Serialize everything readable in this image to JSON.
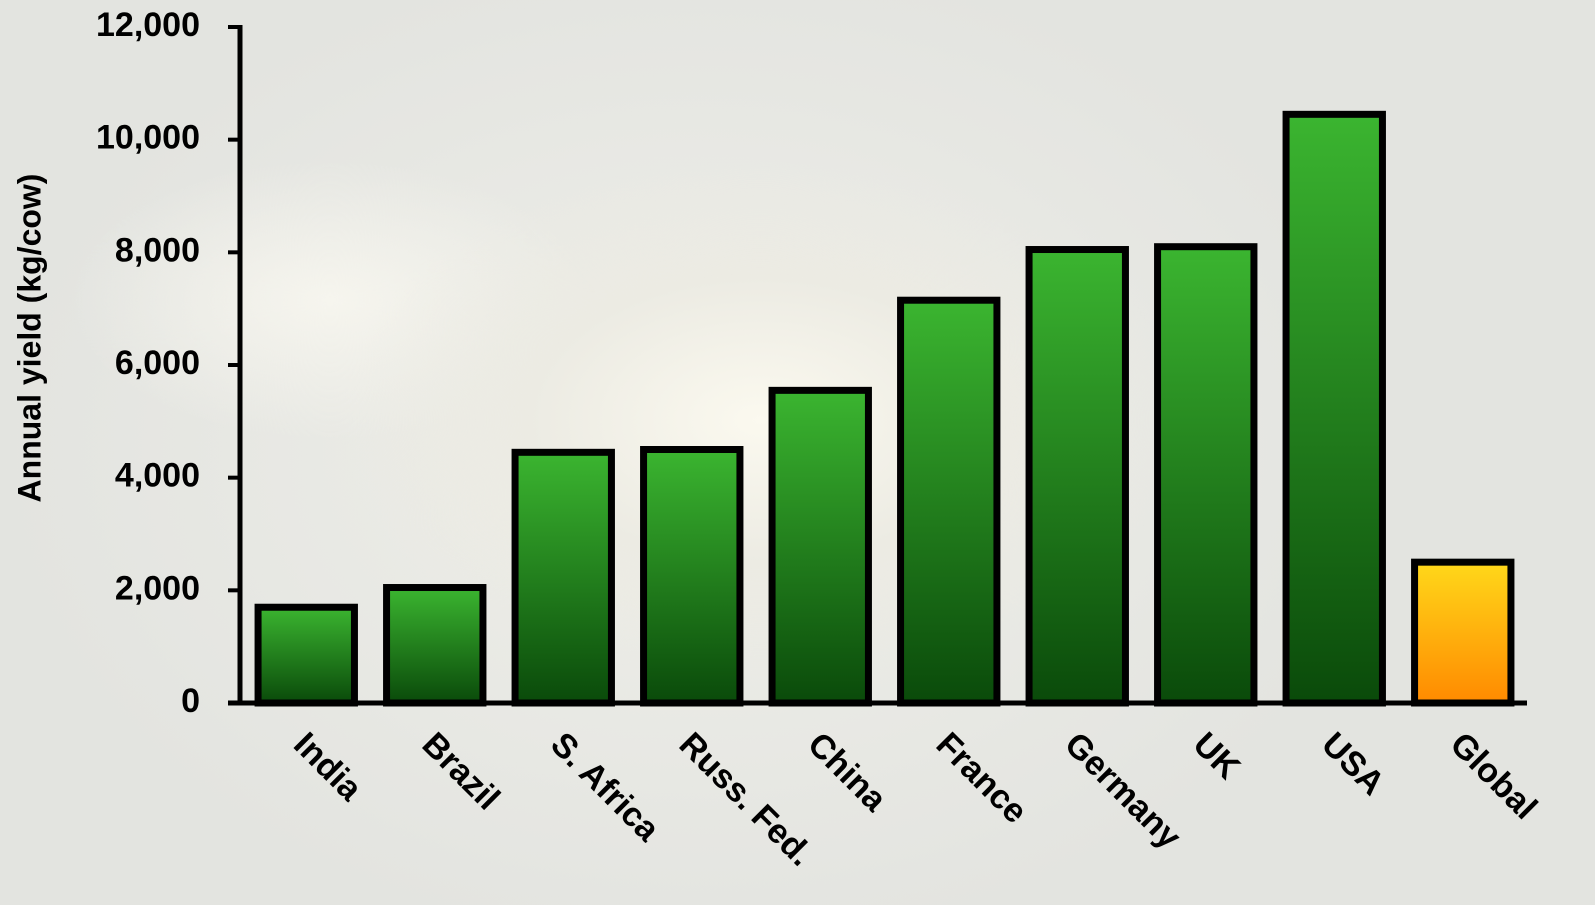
{
  "chart_data": {
    "type": "bar",
    "y_label": "Annual yield (kg/cow)",
    "categories": [
      "India",
      "Brazil",
      "S. Africa",
      "Russ. Fed.",
      "China",
      "France",
      "Germany",
      "UK",
      "USA",
      "Global"
    ],
    "values": [
      1700,
      2050,
      4450,
      4500,
      5550,
      7150,
      8050,
      8100,
      10450,
      2500
    ],
    "colors": [
      [
        "#3bb530",
        "#0a4a0a"
      ],
      [
        "#3bb530",
        "#0a4a0a"
      ],
      [
        "#3bb530",
        "#0a4a0a"
      ],
      [
        "#3bb530",
        "#0a4a0a"
      ],
      [
        "#3bb530",
        "#0a4a0a"
      ],
      [
        "#3bb530",
        "#0a4a0a"
      ],
      [
        "#3bb530",
        "#0a4a0a"
      ],
      [
        "#3bb530",
        "#0a4a0a"
      ],
      [
        "#3bb530",
        "#0a4a0a"
      ],
      [
        "#ffd81a",
        "#ff8a00"
      ]
    ],
    "ylim": [
      0,
      12000
    ],
    "yticks": [
      0,
      {
        "value": 2000,
        "label": "2,000"
      },
      {
        "value": 4000,
        "label": "4,000"
      },
      {
        "value": 6000,
        "label": "6,000"
      },
      {
        "value": 8000,
        "label": "8,000"
      },
      {
        "value": 10000,
        "label": "10,000"
      },
      {
        "value": 12000,
        "label": "12,000"
      }
    ],
    "grid": false
  }
}
